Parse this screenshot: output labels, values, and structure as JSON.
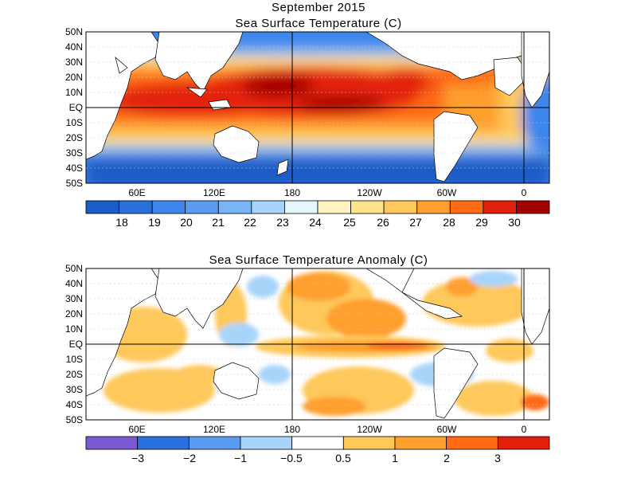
{
  "title": "September 2015",
  "panels": [
    {
      "title": "Sea Surface Temperature (C)",
      "lat_labels": [
        "50N",
        "40N",
        "30N",
        "20N",
        "10N",
        "EQ",
        "10S",
        "20S",
        "30S",
        "40S",
        "50S"
      ],
      "lon_labels": [
        "60E",
        "120E",
        "180",
        "120W",
        "60W",
        "0"
      ],
      "colorbar_labels": [
        "18",
        "19",
        "20",
        "21",
        "22",
        "23",
        "24",
        "25",
        "26",
        "27",
        "28",
        "29",
        "30"
      ],
      "colorbar_colors": [
        "#1a5cc8",
        "#2a70dc",
        "#3c86ec",
        "#5a9cf0",
        "#78b4f6",
        "#a8d4fa",
        "#e4f8fc",
        "#fff4c0",
        "#ffe38a",
        "#ffc85a",
        "#ff9f2e",
        "#ff6a12",
        "#e3200c",
        "#a50000"
      ]
    },
    {
      "title": "Sea Surface Temperature Anomaly (C)",
      "lat_labels": [
        "50N",
        "40N",
        "30N",
        "20N",
        "10N",
        "EQ",
        "10S",
        "20S",
        "30S",
        "40S",
        "50S"
      ],
      "lon_labels": [
        "60E",
        "120E",
        "180",
        "120W",
        "60W",
        "0"
      ],
      "colorbar_labels": [
        "−3",
        "−2",
        "−1",
        "−0.5",
        "0.5",
        "1",
        "2",
        "3"
      ],
      "colorbar_colors": [
        "#7a5ad2",
        "#2a70dc",
        "#5a9cf0",
        "#a8d4fa",
        "#ffffff",
        "#ffc85a",
        "#ff9f2e",
        "#ff6a12",
        "#e3200c"
      ]
    }
  ]
}
